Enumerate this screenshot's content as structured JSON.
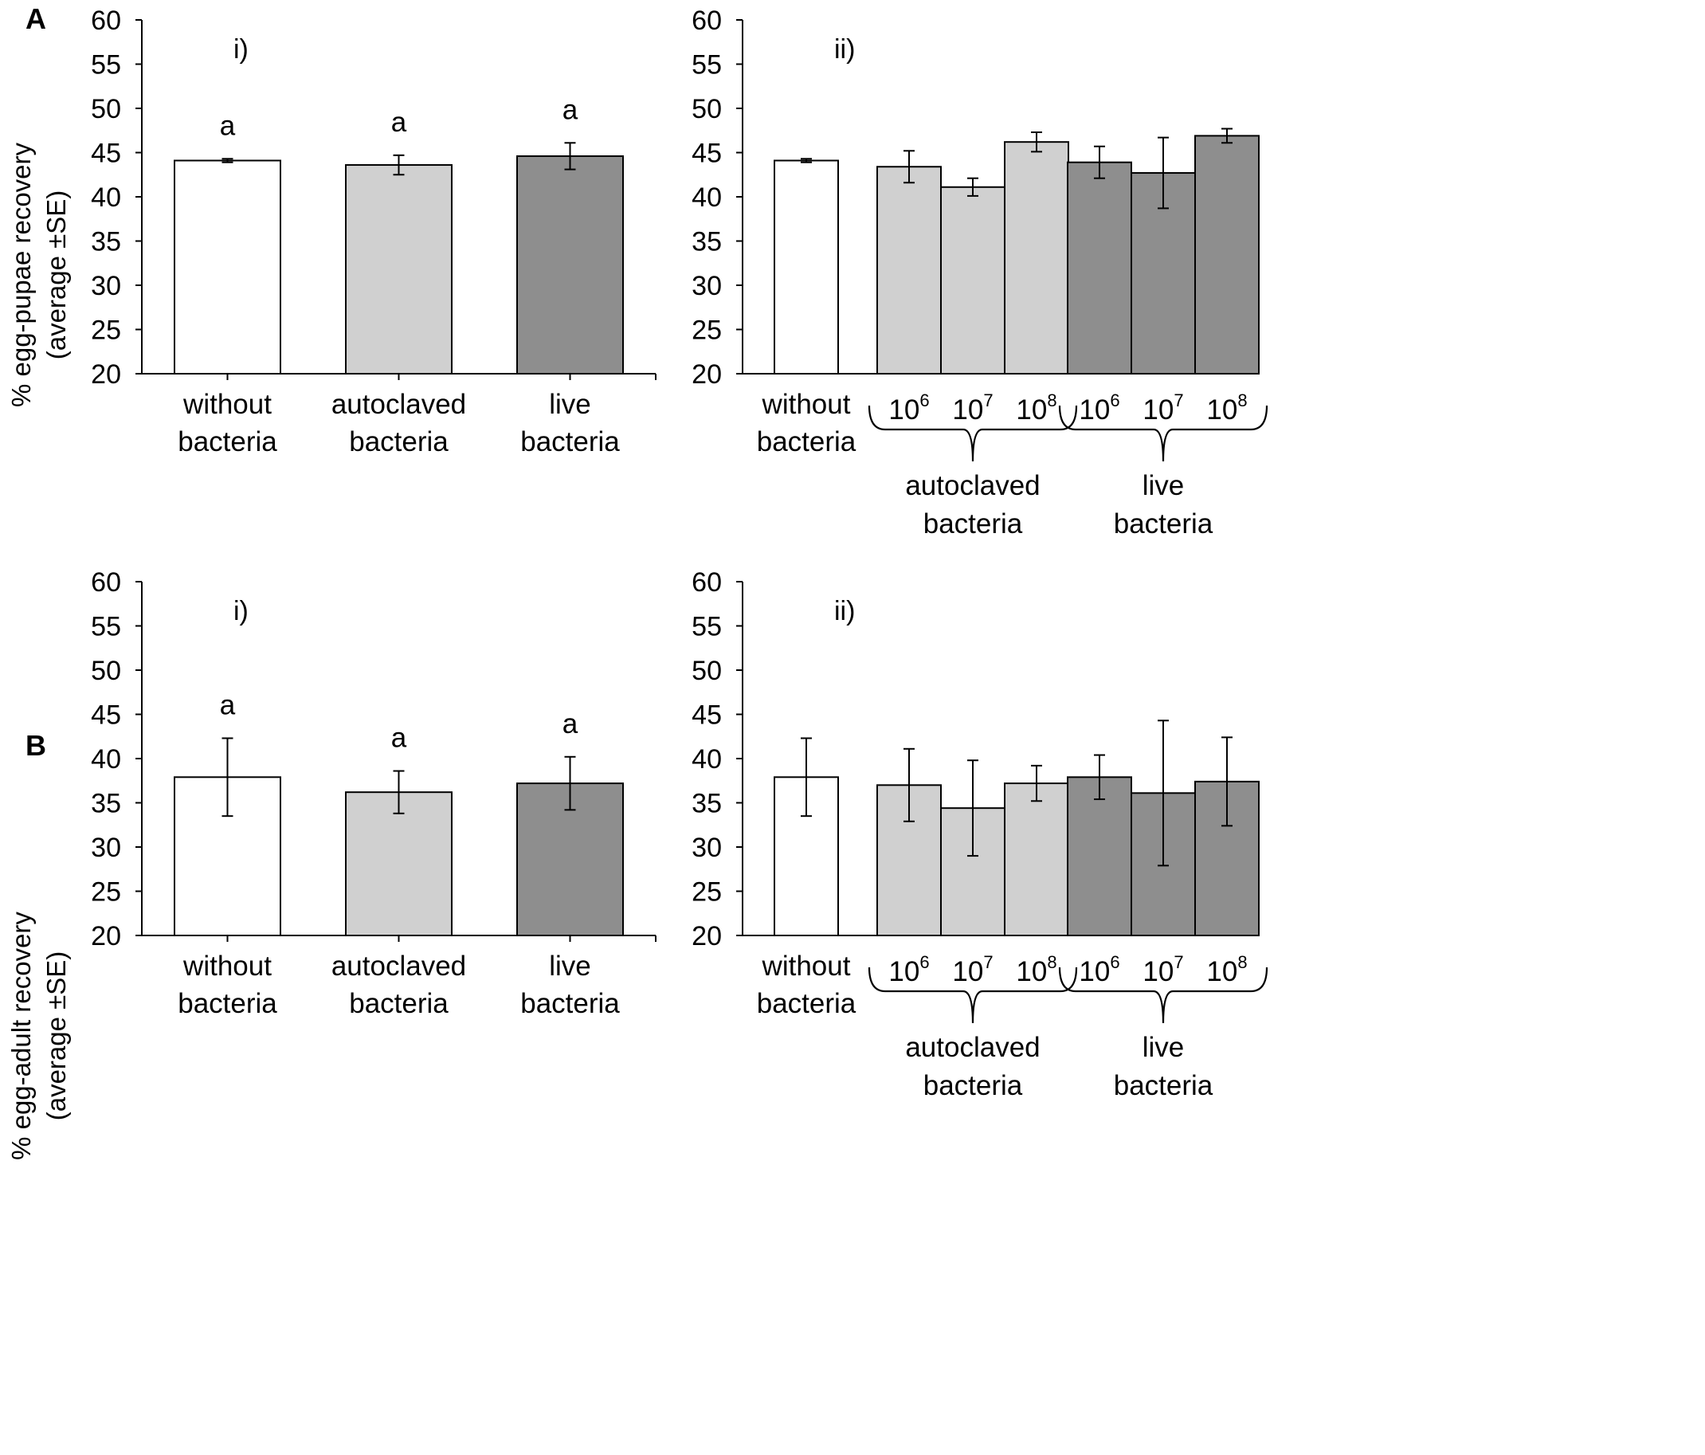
{
  "colors": {
    "none": "#ffffff",
    "autoclaved": "#d0d0d0",
    "live": "#8e8e8e",
    "stroke": "#000000"
  },
  "panels": [
    {
      "letter": "A",
      "ylabel_line1": "% egg-pupae recovery",
      "ylabel_line2": "(average ±SE)"
    },
    {
      "letter": "B",
      "ylabel_line1": "% egg-adult recovery",
      "ylabel_line2": "(average ±SE)"
    }
  ],
  "chart_data": [
    {
      "id": "A-i",
      "type": "bar",
      "subplot_label": "i)",
      "ylim": [
        20,
        60
      ],
      "yticks": [
        "20",
        "25",
        "30",
        "35",
        "40",
        "45",
        "50",
        "55",
        "60"
      ],
      "categories": [
        {
          "line1": "without",
          "line2": "bacteria",
          "value": 44.1,
          "err": 0.2,
          "letter": "a",
          "color": "none"
        },
        {
          "line1": "autoclaved",
          "line2": "bacteria",
          "value": 43.6,
          "err": 1.1,
          "letter": "a",
          "color": "autoclaved"
        },
        {
          "line1": "live",
          "line2": "bacteria",
          "value": 44.6,
          "err": 1.5,
          "letter": "a",
          "color": "live"
        }
      ]
    },
    {
      "id": "A-ii",
      "type": "bar",
      "subplot_label": "ii)",
      "ylim": [
        20,
        60
      ],
      "yticks": [
        "20",
        "25",
        "30",
        "35",
        "40",
        "45",
        "50",
        "55",
        "60"
      ],
      "control": {
        "line1": "without",
        "line2": "bacteria",
        "value": 44.1,
        "err": 0.2,
        "color": "none"
      },
      "groups": [
        {
          "line1": "autoclaved",
          "line2": "bacteria",
          "color": "autoclaved",
          "bars": [
            {
              "base": "10",
              "exp": "6",
              "value": 43.4,
              "err": 1.8
            },
            {
              "base": "10",
              "exp": "7",
              "value": 41.1,
              "err": 1.0
            },
            {
              "base": "10",
              "exp": "8",
              "value": 46.2,
              "err": 1.1
            }
          ]
        },
        {
          "line1": "live",
          "line2": "bacteria",
          "color": "live",
          "bars": [
            {
              "base": "10",
              "exp": "6",
              "value": 43.9,
              "err": 1.8
            },
            {
              "base": "10",
              "exp": "7",
              "value": 42.7,
              "err": 4.0
            },
            {
              "base": "10",
              "exp": "8",
              "value": 46.9,
              "err": 0.8
            }
          ]
        }
      ]
    },
    {
      "id": "B-i",
      "type": "bar",
      "subplot_label": "i)",
      "ylim": [
        20,
        60
      ],
      "yticks": [
        "20",
        "25",
        "30",
        "35",
        "40",
        "45",
        "50",
        "55",
        "60"
      ],
      "categories": [
        {
          "line1": "without",
          "line2": "bacteria",
          "value": 37.9,
          "err": 4.4,
          "letter": "a",
          "color": "none"
        },
        {
          "line1": "autoclaved",
          "line2": "bacteria",
          "value": 36.2,
          "err": 2.4,
          "letter": "a",
          "color": "autoclaved"
        },
        {
          "line1": "live",
          "line2": "bacteria",
          "value": 37.2,
          "err": 3.0,
          "letter": "a",
          "color": "live"
        }
      ]
    },
    {
      "id": "B-ii",
      "type": "bar",
      "subplot_label": "ii)",
      "ylim": [
        20,
        60
      ],
      "yticks": [
        "20",
        "25",
        "30",
        "35",
        "40",
        "45",
        "50",
        "55",
        "60"
      ],
      "control": {
        "line1": "without",
        "line2": "bacteria",
        "value": 37.9,
        "err": 4.4,
        "color": "none"
      },
      "groups": [
        {
          "line1": "autoclaved",
          "line2": "bacteria",
          "color": "autoclaved",
          "bars": [
            {
              "base": "10",
              "exp": "6",
              "value": 37.0,
              "err": 4.1
            },
            {
              "base": "10",
              "exp": "7",
              "value": 34.4,
              "err": 5.4
            },
            {
              "base": "10",
              "exp": "8",
              "value": 37.2,
              "err": 2.0
            }
          ]
        },
        {
          "line1": "live",
          "line2": "bacteria",
          "color": "live",
          "bars": [
            {
              "base": "10",
              "exp": "6",
              "value": 37.9,
              "err": 2.5
            },
            {
              "base": "10",
              "exp": "7",
              "value": 36.1,
              "err": 8.2
            },
            {
              "base": "10",
              "exp": "8",
              "value": 37.4,
              "err": 5.0
            }
          ]
        }
      ]
    }
  ]
}
